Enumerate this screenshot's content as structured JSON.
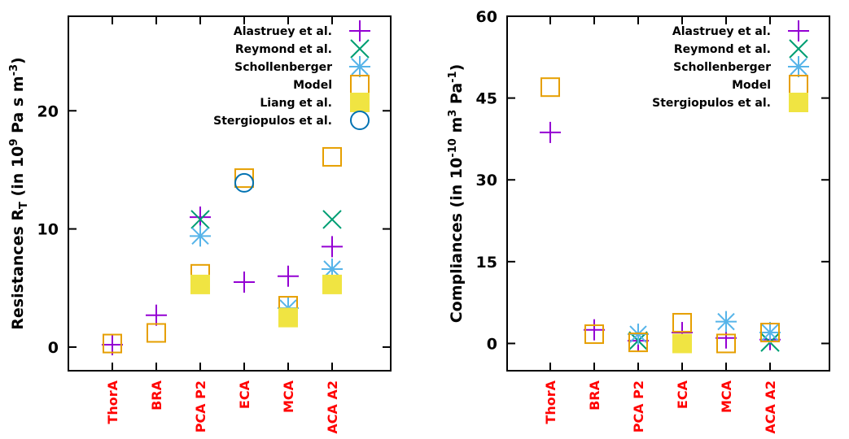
{
  "chart_data": [
    {
      "type": "scatter",
      "ylabel_main": "Resistances R",
      "ylabel_sub": "T",
      "ylabel_rest": " (in 10",
      "ylabel_sup1": "9",
      "ylabel_rest2": " Pa s m",
      "ylabel_sup2": "-3",
      "ylabel_end": ")",
      "categories": [
        "ThorA",
        "BRA",
        "PCA P2",
        "ECA",
        "MCA",
        "ACA A2"
      ],
      "ylim": [
        -2,
        28
      ],
      "yticks": [
        0,
        10,
        20
      ],
      "legend_position": "top-right",
      "series": [
        {
          "name": "Alastruey et al.",
          "marker": "plus",
          "color": "#9400d3",
          "values": [
            0.2,
            2.7,
            11.0,
            5.5,
            6.0,
            8.5
          ]
        },
        {
          "name": "Reymond et al.",
          "marker": "cross",
          "color": "#009e73",
          "values": [
            null,
            null,
            10.8,
            null,
            null,
            10.8
          ]
        },
        {
          "name": "Schollenberger",
          "marker": "star",
          "color": "#56b4e9",
          "values": [
            null,
            null,
            9.4,
            null,
            3.3,
            6.6
          ]
        },
        {
          "name": "Model",
          "marker": "square-open",
          "color": "#e69f00",
          "values": [
            0.3,
            1.2,
            6.2,
            14.3,
            3.5,
            16.1
          ]
        },
        {
          "name": "Liang et al.",
          "marker": "square-filled",
          "color": "#f0e442",
          "values": [
            null,
            null,
            5.3,
            null,
            2.5,
            5.3
          ]
        },
        {
          "name": "Stergiopulos et al.",
          "marker": "circle-open",
          "color": "#0072b2",
          "values": [
            null,
            null,
            null,
            13.9,
            null,
            null
          ]
        }
      ]
    },
    {
      "type": "scatter",
      "ylabel_main": "Compliances (in 10",
      "ylabel_sup1": "-10",
      "ylabel_rest": " m",
      "ylabel_sup2": "3",
      "ylabel_rest2": " Pa",
      "ylabel_sup3": "-1",
      "ylabel_end": ")",
      "categories": [
        "ThorA",
        "BRA",
        "PCA P2",
        "ECA",
        "MCA",
        "ACA A2"
      ],
      "ylim": [
        -5,
        60
      ],
      "yticks": [
        0,
        15,
        30,
        45,
        60
      ],
      "legend_position": "top-right",
      "series": [
        {
          "name": "Alastruey et al.",
          "marker": "plus",
          "color": "#9400d3",
          "values": [
            38.7,
            2.5,
            0.5,
            2.0,
            1.0,
            0.7
          ]
        },
        {
          "name": "Reymond et al.",
          "marker": "cross",
          "color": "#009e73",
          "values": [
            null,
            null,
            0.5,
            null,
            null,
            0.2
          ]
        },
        {
          "name": "Schollenberger",
          "marker": "star",
          "color": "#56b4e9",
          "values": [
            null,
            null,
            1.7,
            null,
            4.0,
            2.0
          ]
        },
        {
          "name": "Model",
          "marker": "square-open",
          "color": "#e69f00",
          "values": [
            47.0,
            1.7,
            0.2,
            3.8,
            0.0,
            2.0
          ]
        },
        {
          "name": "Stergiopulos et al.",
          "marker": "square-filled",
          "color": "#f0e442",
          "values": [
            null,
            null,
            null,
            0.0,
            null,
            null
          ]
        }
      ]
    }
  ]
}
